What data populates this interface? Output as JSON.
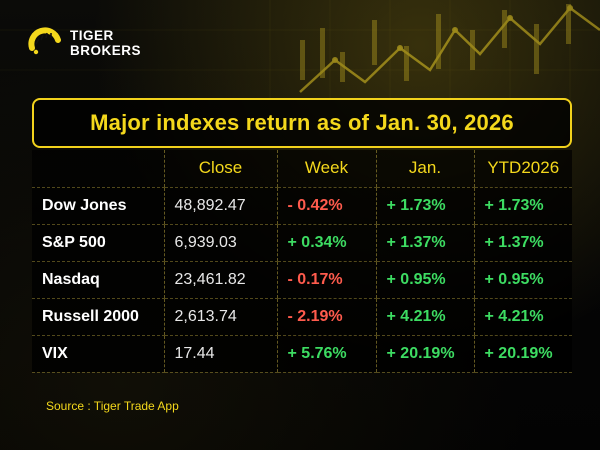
{
  "brand": {
    "line1": "TIGER",
    "line2": "BROKERS",
    "accent_color": "#f4d81c",
    "logo_icon": "tiger-stripe-icon"
  },
  "title": "Major indexes return as of Jan. 30, 2026",
  "table": {
    "headers": [
      "",
      "Close",
      "Week",
      "Jan.",
      "YTD2026"
    ],
    "rows": [
      {
        "name": "Dow Jones",
        "close": "48,892.47",
        "week": "- 0.42%",
        "jan": "+ 1.73%",
        "ytd": "+ 1.73%"
      },
      {
        "name": "S&P 500",
        "close": "6,939.03",
        "week": "+ 0.34%",
        "jan": "+ 1.37%",
        "ytd": "+ 1.37%"
      },
      {
        "name": "Nasdaq",
        "close": "23,461.82",
        "week": "- 0.17%",
        "jan": "+ 0.95%",
        "ytd": "+ 0.95%"
      },
      {
        "name": "Russell 2000",
        "close": "2,613.74",
        "week": "- 2.19%",
        "jan": "+ 4.21%",
        "ytd": "+ 4.21%"
      },
      {
        "name": "VIX",
        "close": "17.44",
        "week": "+ 5.76%",
        "jan": "+ 20.19%",
        "ytd": "+ 20.19%"
      }
    ]
  },
  "colors": {
    "positive": "#3ddc62",
    "negative": "#ff5b4d",
    "header": "#f4d81c"
  },
  "source": "Source : Tiger Trade App"
}
